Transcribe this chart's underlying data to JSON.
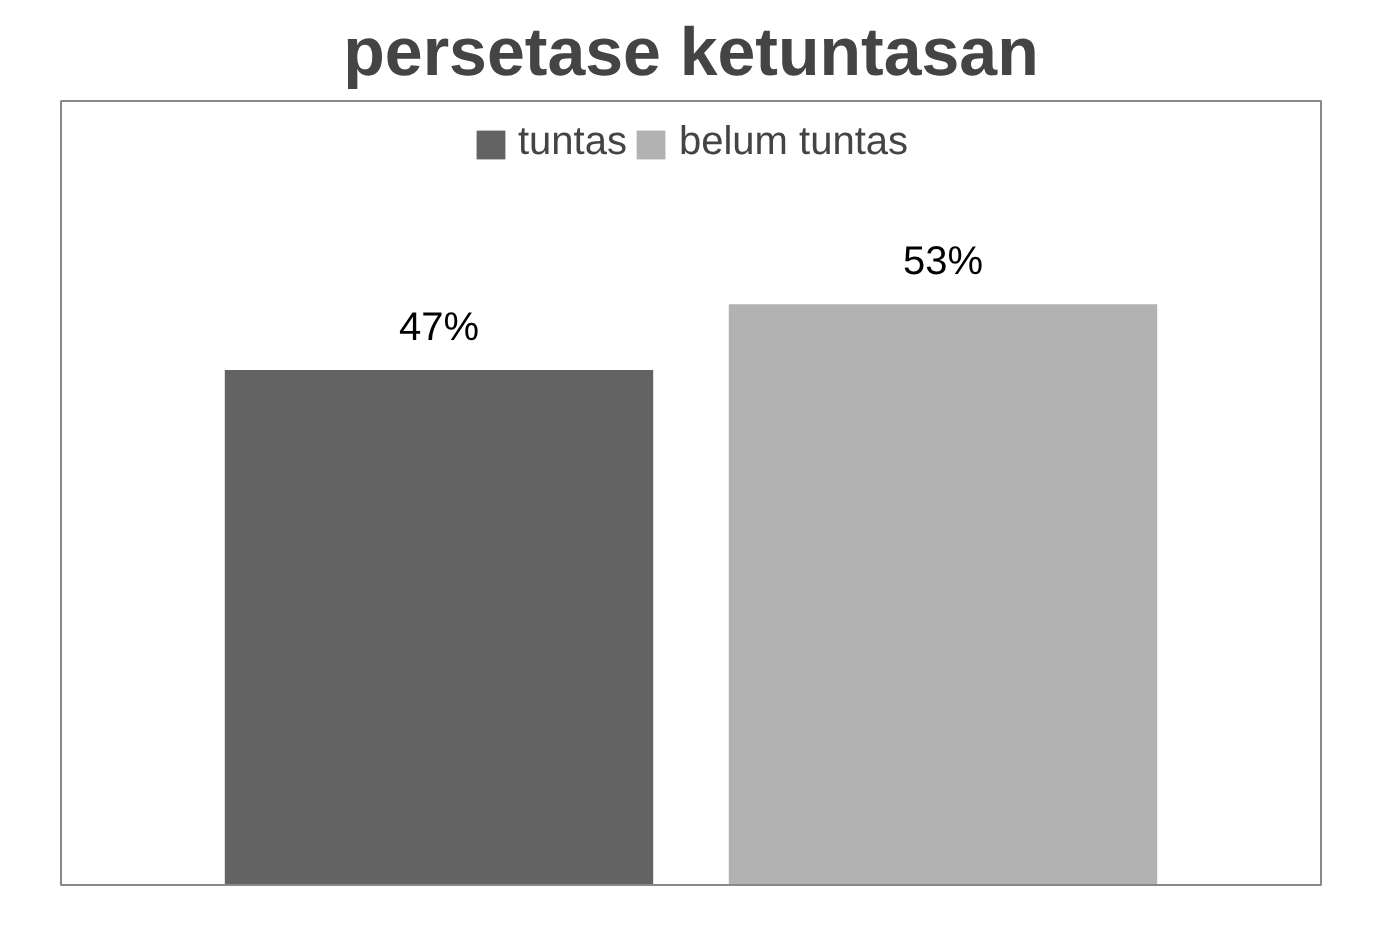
{
  "chart_data": {
    "type": "bar",
    "title": "persetase ketuntasan",
    "categories": [
      null
    ],
    "series": [
      {
        "name": "tuntas",
        "color": "#636363",
        "values": [
          47
        ],
        "value_labels": [
          "47%"
        ]
      },
      {
        "name": "belum tuntas",
        "color": "#b2b2b2",
        "values": [
          53
        ],
        "value_labels": [
          "53%"
        ]
      }
    ],
    "legend": "top"
  }
}
